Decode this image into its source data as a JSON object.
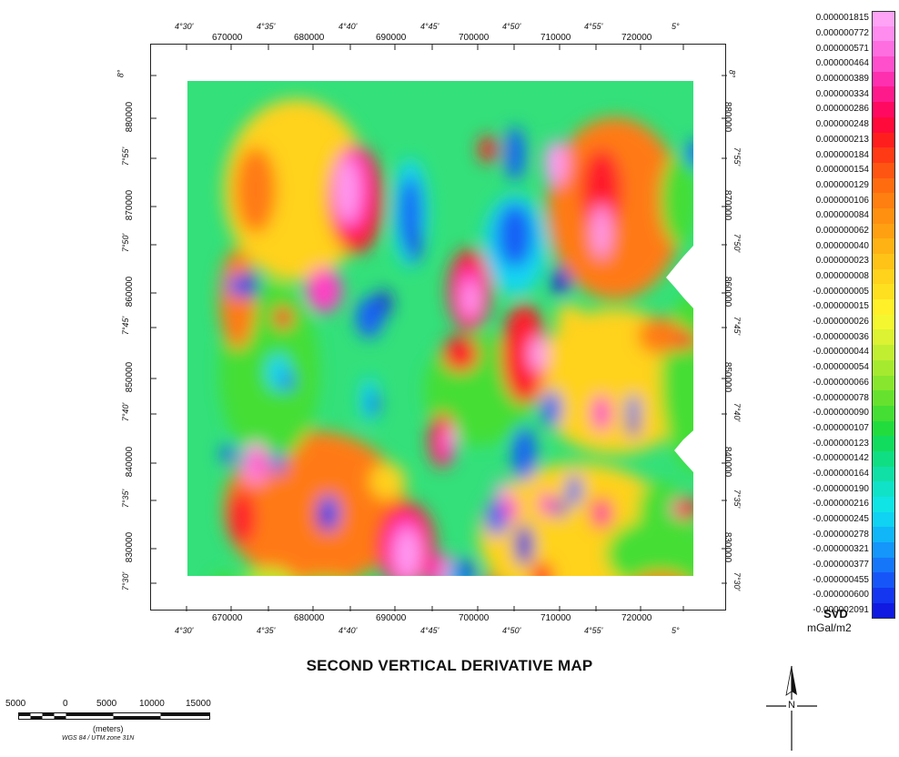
{
  "map": {
    "title": "SECOND VERTICAL DERIVATIVE MAP",
    "x_grid_labels": [
      "670000",
      "680000",
      "690000",
      "700000",
      "710000",
      "720000"
    ],
    "y_grid_labels": [
      "880000",
      "870000",
      "860000",
      "850000",
      "840000",
      "830000"
    ],
    "lon_labels": [
      "4°30'",
      "4°35'",
      "4°40'",
      "4°45'",
      "4°50'",
      "4°55'",
      "5°"
    ],
    "lat_labels": [
      "8°",
      "7°55'",
      "7°50'",
      "7°45'",
      "7°40'",
      "7°35'",
      "7°30'"
    ]
  },
  "legend": {
    "title": "SVD",
    "unit": "mGal/m2",
    "entries": [
      {
        "label": "0.000001815",
        "color": "#ffa3f7"
      },
      {
        "label": "0.000000772",
        "color": "#ff8cee"
      },
      {
        "label": "0.000000571",
        "color": "#ff6ee0"
      },
      {
        "label": "0.000000464",
        "color": "#ff4fcc"
      },
      {
        "label": "0.000000389",
        "color": "#ff30b0"
      },
      {
        "label": "0.000000334",
        "color": "#ff1a8c"
      },
      {
        "label": "0.000000286",
        "color": "#ff0a60"
      },
      {
        "label": "0.000000248",
        "color": "#ff0a3a"
      },
      {
        "label": "0.000000213",
        "color": "#ff1e1e"
      },
      {
        "label": "0.000000184",
        "color": "#ff3a14"
      },
      {
        "label": "0.000000154",
        "color": "#ff5512"
      },
      {
        "label": "0.000000129",
        "color": "#ff6c10"
      },
      {
        "label": "0.000000106",
        "color": "#ff7f10"
      },
      {
        "label": "0.000000084",
        "color": "#ff9010"
      },
      {
        "label": "0.000000062",
        "color": "#ffa012"
      },
      {
        "label": "0.000000040",
        "color": "#ffb214"
      },
      {
        "label": "0.000000023",
        "color": "#ffc318"
      },
      {
        "label": "0.000000008",
        "color": "#ffd21c"
      },
      {
        "label": "-0.000000005",
        "color": "#ffe020"
      },
      {
        "label": "-0.000000015",
        "color": "#fff02a"
      },
      {
        "label": "-0.000000026",
        "color": "#f4f730"
      },
      {
        "label": "-0.000000036",
        "color": "#dcf232"
      },
      {
        "label": "-0.000000044",
        "color": "#c2ee32"
      },
      {
        "label": "-0.000000054",
        "color": "#a6ea30"
      },
      {
        "label": "-0.000000066",
        "color": "#88e62e"
      },
      {
        "label": "-0.000000078",
        "color": "#66e22e"
      },
      {
        "label": "-0.000000090",
        "color": "#44de34"
      },
      {
        "label": "-0.000000107",
        "color": "#22dc3e"
      },
      {
        "label": "-0.000000123",
        "color": "#12dc5e"
      },
      {
        "label": "-0.000000142",
        "color": "#10de82"
      },
      {
        "label": "-0.000000164",
        "color": "#10e0a6"
      },
      {
        "label": "-0.000000190",
        "color": "#10e2c8"
      },
      {
        "label": "-0.000000216",
        "color": "#10e4e4"
      },
      {
        "label": "-0.000000245",
        "color": "#10d2f2"
      },
      {
        "label": "-0.000000278",
        "color": "#10b6f8"
      },
      {
        "label": "-0.000000321",
        "color": "#1496fa"
      },
      {
        "label": "-0.000000377",
        "color": "#1676fa"
      },
      {
        "label": "-0.000000455",
        "color": "#1656f8"
      },
      {
        "label": "-0.000000600",
        "color": "#1436f0"
      },
      {
        "label": "-0.000002091",
        "color": "#101ae0"
      }
    ]
  },
  "scalebar": {
    "labels": [
      "5000",
      "0",
      "5000",
      "10000",
      "15000"
    ],
    "unit": "(meters)",
    "projection": "WGS 84 / UTM zone 31N"
  },
  "north_arrow": {
    "label": "N"
  }
}
